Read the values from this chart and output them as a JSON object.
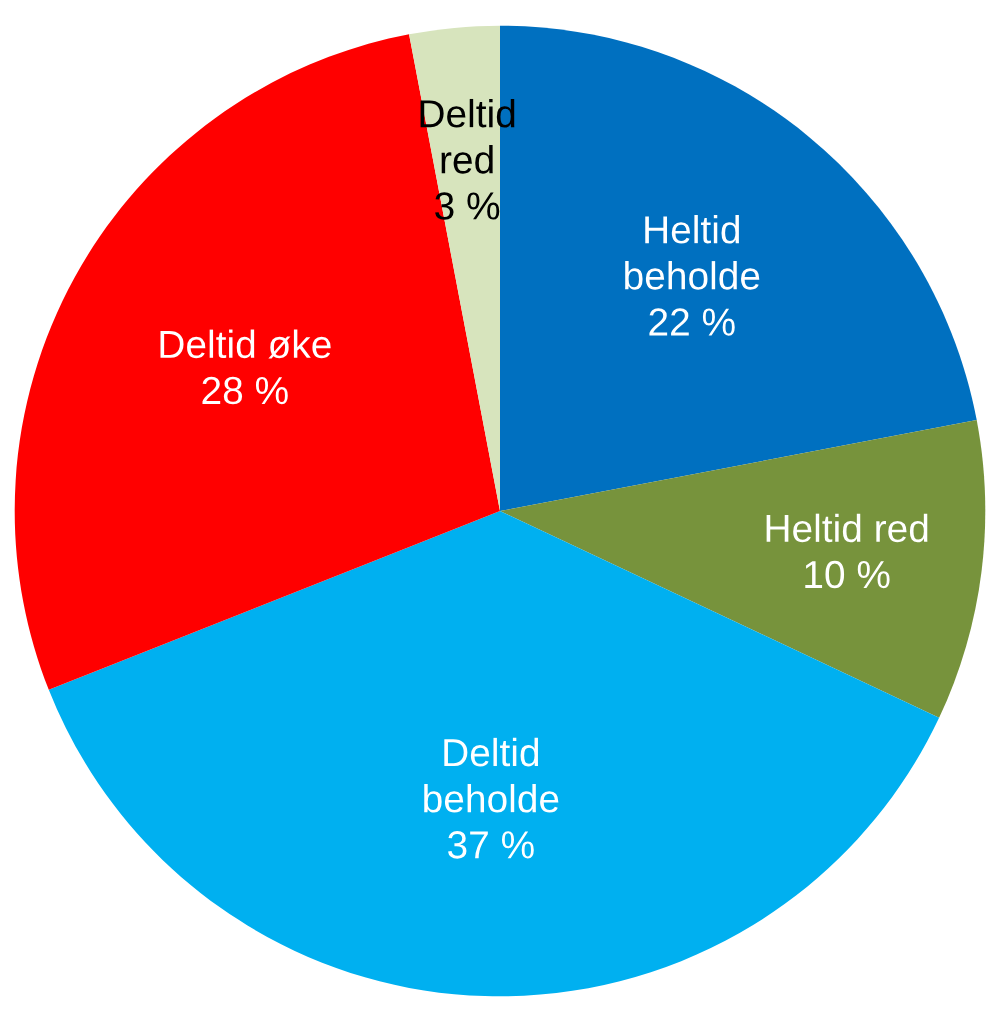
{
  "chart_data": {
    "type": "pie",
    "categories": [
      "Heltid beholde",
      "Heltid red",
      "Deltid beholde",
      "Deltid øke",
      "Deltid red"
    ],
    "values": [
      22,
      10,
      37,
      28,
      3
    ],
    "value_labels": [
      "22 %",
      "10 %",
      "37 %",
      "28 %",
      "3 %"
    ],
    "colors": [
      "#0070c0",
      "#77933c",
      "#00b0f0",
      "#ff0000",
      "#d7e4bd"
    ],
    "legend": false
  }
}
